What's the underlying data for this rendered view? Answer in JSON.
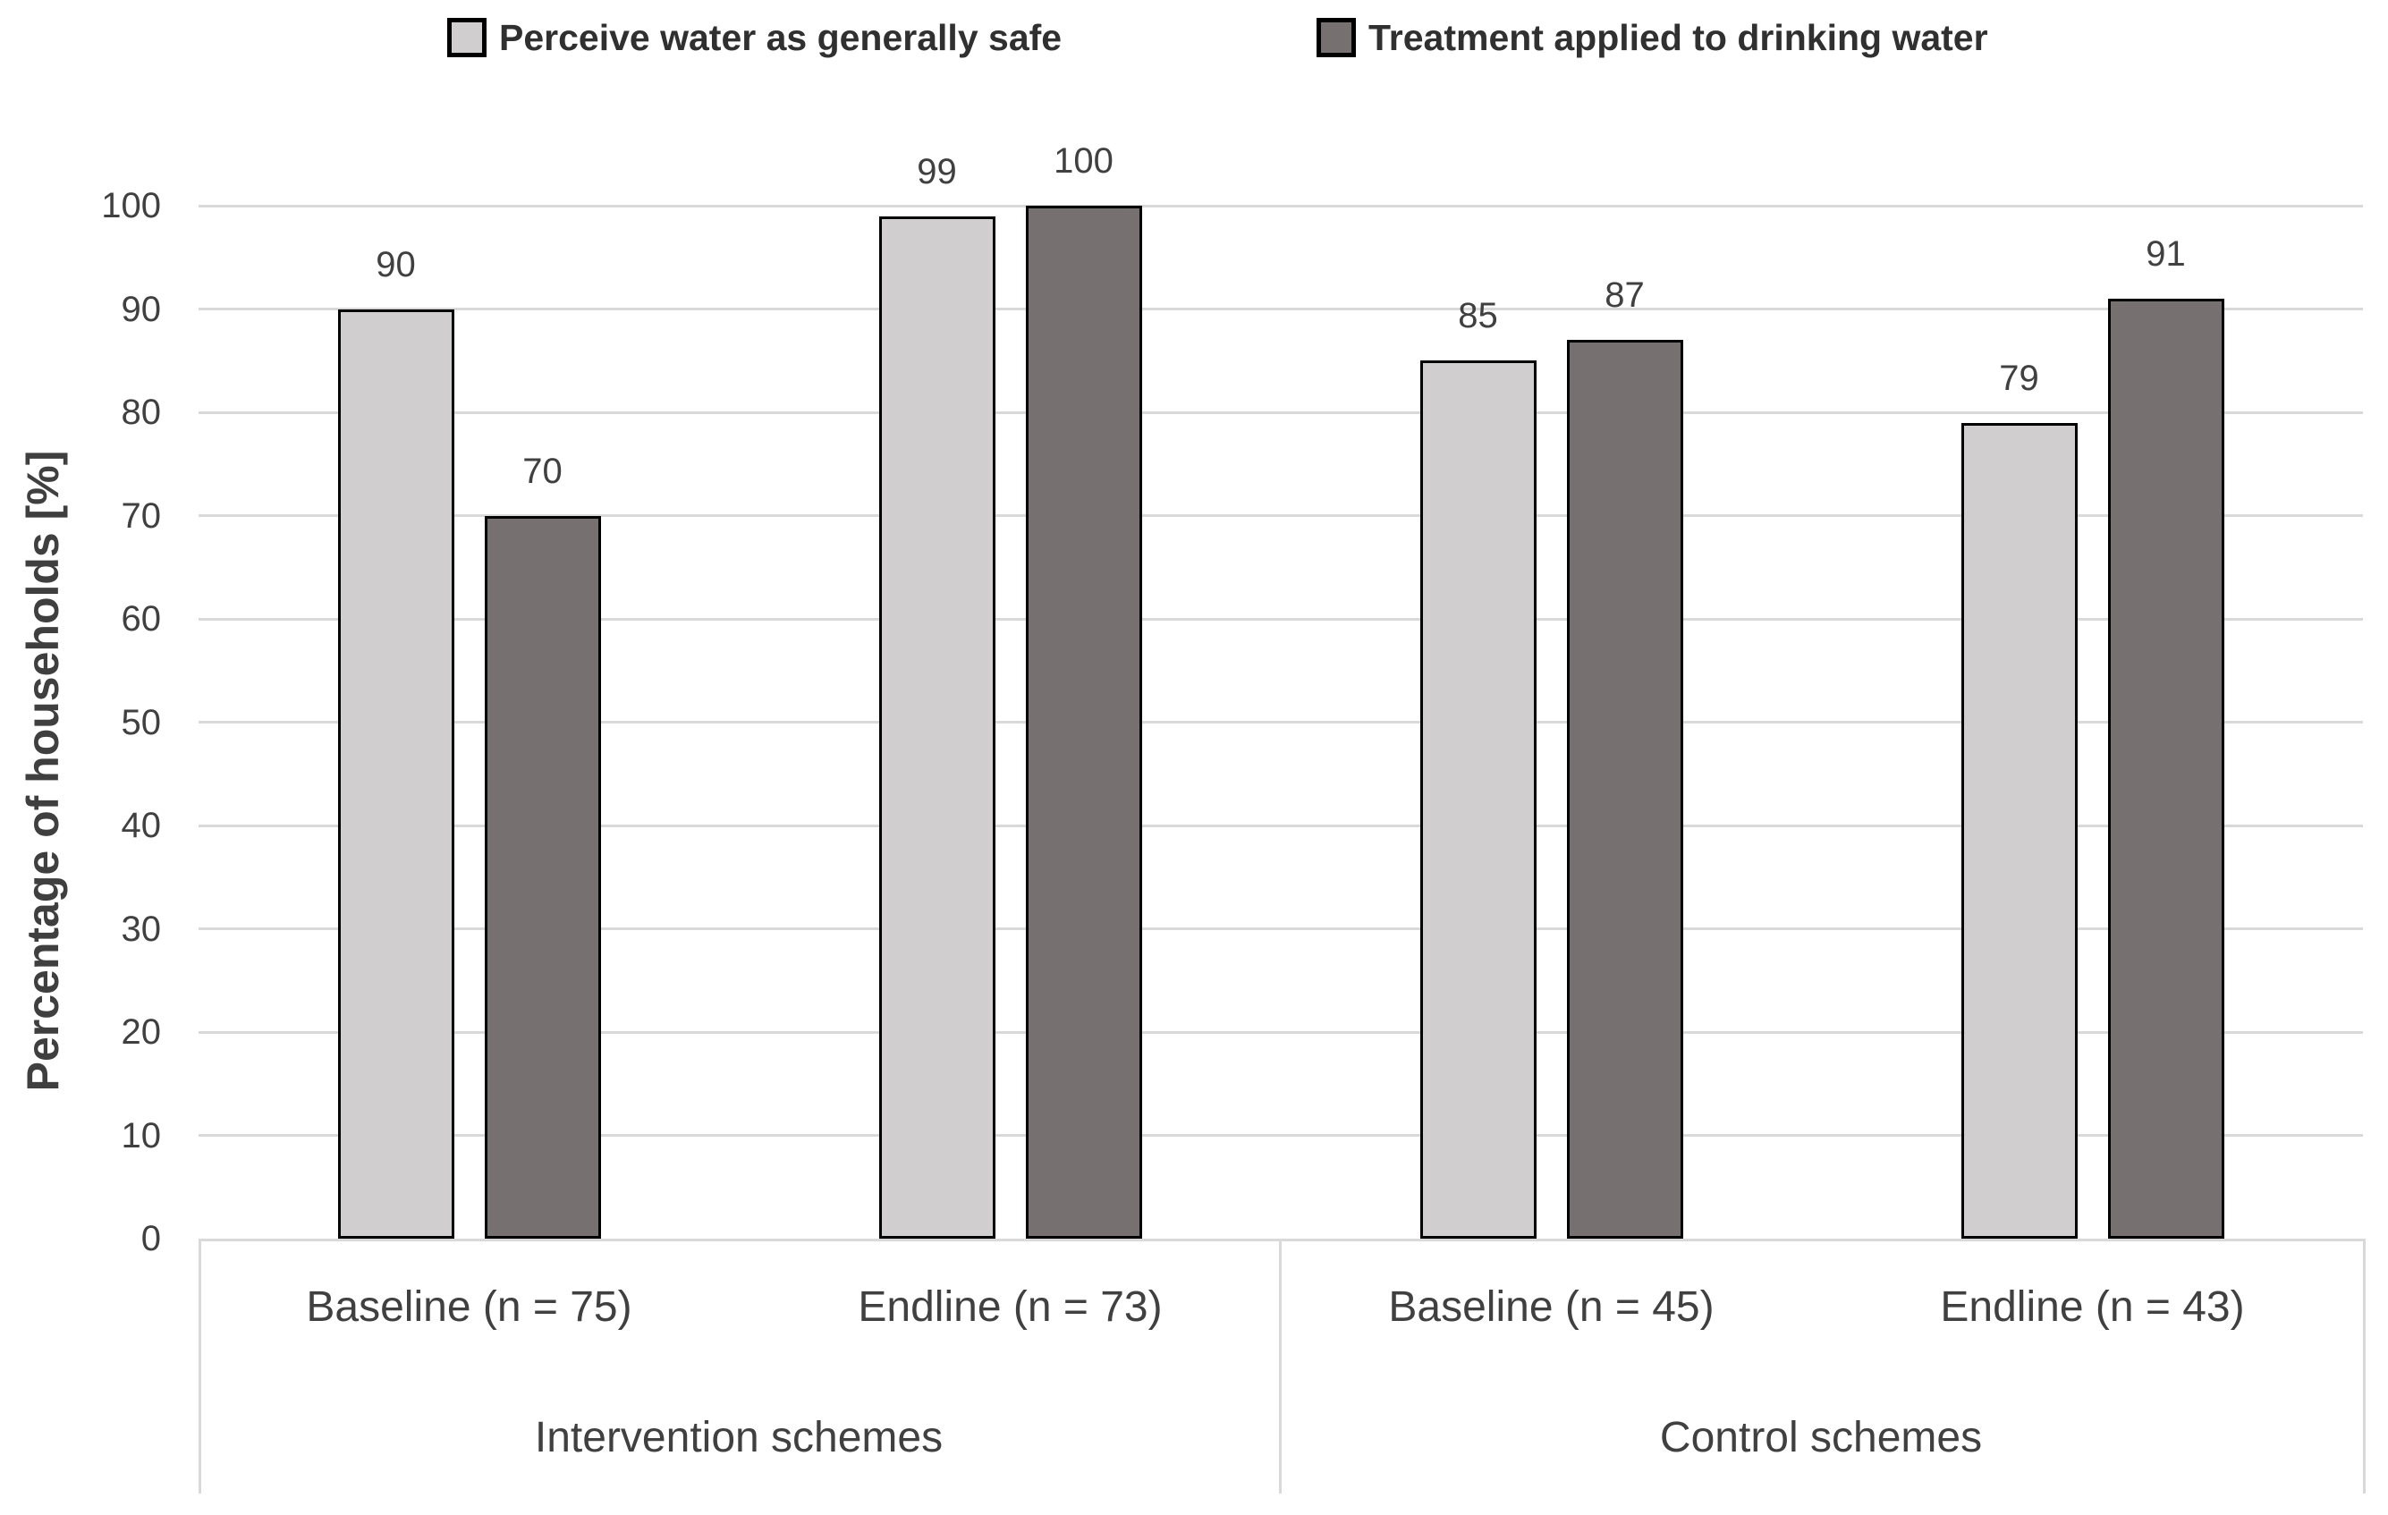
{
  "chart_data": {
    "type": "bar",
    "title": "",
    "xlabel": "",
    "ylabel": "Percentage of households [%]",
    "ylim": [
      0,
      100
    ],
    "yticks": [
      0,
      10,
      20,
      30,
      40,
      50,
      60,
      70,
      80,
      90,
      100
    ],
    "grid": true,
    "legend_position": "top",
    "categories": [
      "Baseline (n = 75)",
      "Endline (n = 73)",
      "Baseline (n = 45)",
      "Endline (n = 43)"
    ],
    "group_labels": [
      "Intervention schemes",
      "Control schemes"
    ],
    "groups": [
      {
        "label": "Intervention schemes",
        "category_indexes": [
          0,
          1
        ]
      },
      {
        "label": "Control schemes",
        "category_indexes": [
          2,
          3
        ]
      }
    ],
    "series": [
      {
        "name": "Perceive water as generally safe",
        "color": "#d0cece",
        "values": [
          90,
          99,
          85,
          79
        ]
      },
      {
        "name": "Treatment applied to drinking water",
        "color": "#767170",
        "values": [
          70,
          100,
          87,
          91
        ]
      }
    ],
    "bar_border_color": "#000000",
    "gridline_color": "#d9d9d9",
    "text_color": "#404040"
  }
}
